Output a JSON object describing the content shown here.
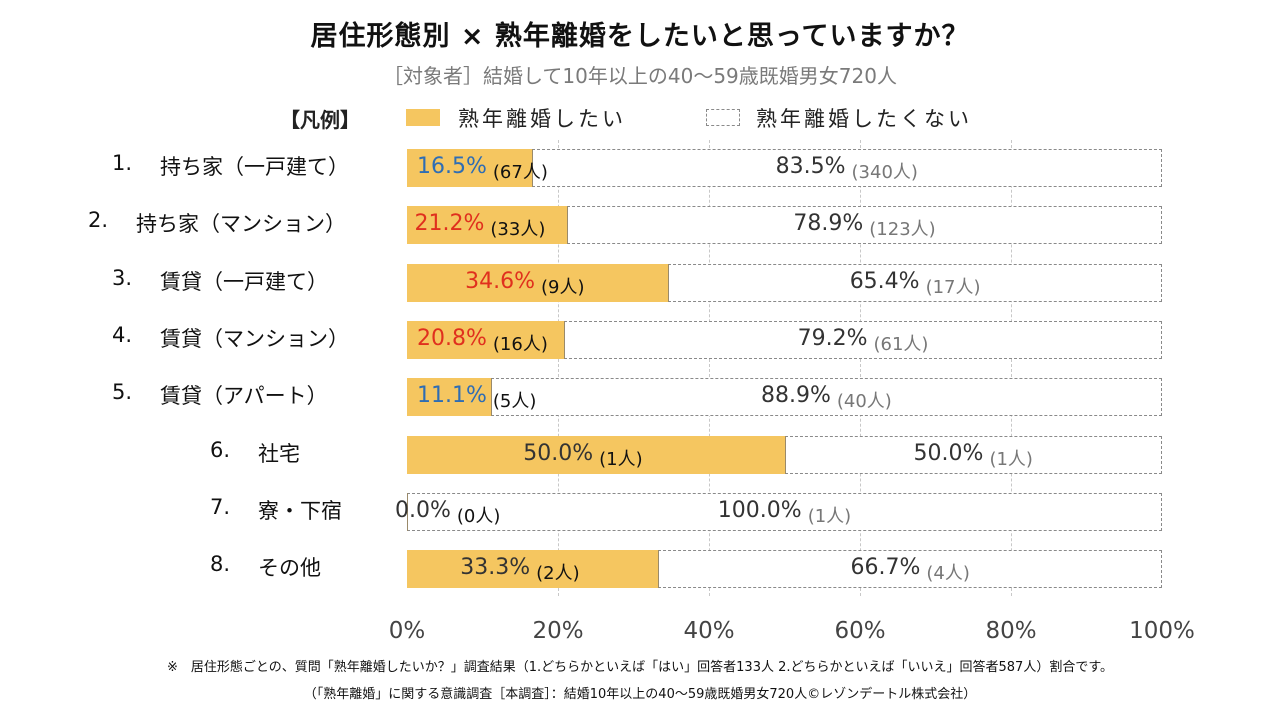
{
  "title": "居住形態別 × 熟年離婚をしたいと思っていますか？",
  "subtitle": "［対象者］結婚して10年以上の40～59歳既婚男女720人",
  "legend": {
    "label": "【凡例】",
    "yes": "熟年離婚したい",
    "no": "熟年離婚したくない"
  },
  "colors": {
    "yes_fill": "#f5c660",
    "no_border": "#8a8a8a",
    "blue": "#2e6db4",
    "red": "#e0301e"
  },
  "chart_data": {
    "type": "bar",
    "orientation": "horizontal-stacked-100",
    "xlim": [
      0,
      100
    ],
    "ticks": [
      "0%",
      "20%",
      "40%",
      "60%",
      "80%",
      "100%"
    ],
    "series": [
      {
        "name": "熟年離婚したい",
        "values": [
          16.5,
          21.2,
          34.6,
          20.8,
          11.1,
          50.0,
          0.0,
          33.3
        ]
      },
      {
        "name": "熟年離婚したくない",
        "values": [
          83.5,
          78.9,
          65.4,
          79.2,
          88.9,
          50.0,
          100.0,
          66.7
        ]
      }
    ],
    "rows": [
      {
        "num": "1.",
        "label": "持ち家（一戸建て）",
        "yes": 16.5,
        "yes_pct": "16.5%",
        "yes_cnt": "(67人)",
        "yes_color": "blue",
        "no_pct": "83.5%",
        "no_cnt": "(340人)"
      },
      {
        "num": "2.",
        "label": "持ち家（マンション）",
        "yes": 21.2,
        "yes_pct": "21.2%",
        "yes_cnt": "(33人)",
        "yes_color": "red",
        "no_pct": "78.9%",
        "no_cnt": "(123人)"
      },
      {
        "num": "3.",
        "label": "賃貸（一戸建て）",
        "yes": 34.6,
        "yes_pct": "34.6%",
        "yes_cnt": "(9人)",
        "yes_color": "red",
        "no_pct": "65.4%",
        "no_cnt": "(17人)"
      },
      {
        "num": "4.",
        "label": "賃貸（マンション）",
        "yes": 20.8,
        "yes_pct": "20.8%",
        "yes_cnt": "(16人)",
        "yes_color": "red",
        "no_pct": "79.2%",
        "no_cnt": "(61人)"
      },
      {
        "num": "5.",
        "label": "賃貸（アパート）",
        "yes": 11.1,
        "yes_pct": "11.1%",
        "yes_cnt": "(5人)",
        "yes_color": "blue",
        "no_pct": "88.9%",
        "no_cnt": "(40人)"
      },
      {
        "num": "6.",
        "label": "社宅",
        "yes": 50.0,
        "yes_pct": "50.0%",
        "yes_cnt": "(1人)",
        "yes_color": "dark",
        "no_pct": "50.0%",
        "no_cnt": "(1人)"
      },
      {
        "num": "7.",
        "label": "寮・下宿",
        "yes": 0.0,
        "yes_pct": "0.0%",
        "yes_cnt": "(0人)",
        "yes_color": "dark",
        "no_pct": "100.0%",
        "no_cnt": "(1人)"
      },
      {
        "num": "8.",
        "label": "その他",
        "yes": 33.3,
        "yes_pct": "33.3%",
        "yes_cnt": "(2人)",
        "yes_color": "dark",
        "no_pct": "66.7%",
        "no_cnt": "(4人)"
      }
    ]
  },
  "footnote": {
    "line1": "※　居住形態ごとの、質問「熟年離婚したいか？」調査結果（1.どちらかといえば「はい」回答者133人 2.どちらかといえば「いいえ」回答者587人）割合です。",
    "line2": "（「熟年離婚」に関する意識調査［本調査］：結婚10年以上の40～59歳既婚男女720人©レゾンデートル株式会社）"
  }
}
